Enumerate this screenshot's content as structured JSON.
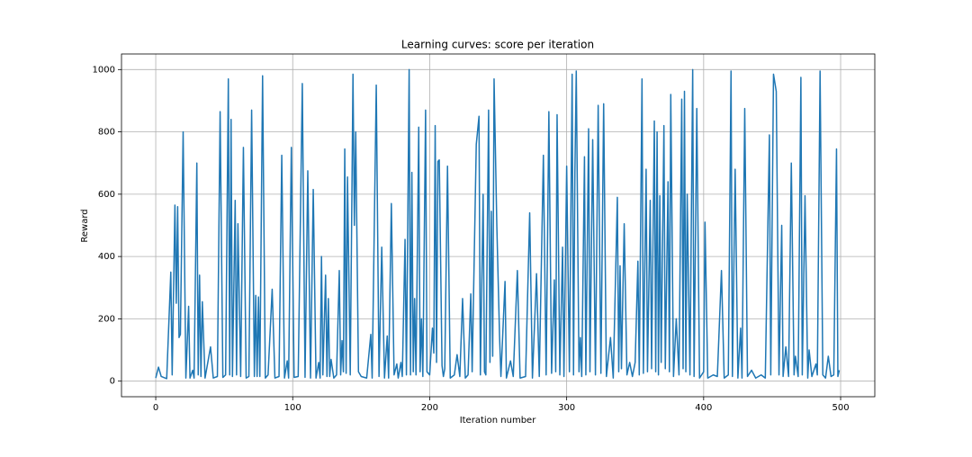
{
  "chart_data": {
    "type": "line",
    "title": "Learning curves: score per iteration",
    "x_label": "Iteration number",
    "y_label": "Reward",
    "xlim": [
      -25,
      524.95
    ],
    "ylim": [
      -50,
      1050
    ],
    "xticks": [
      0,
      100,
      200,
      300,
      400,
      500
    ],
    "yticks": [
      0,
      200,
      400,
      600,
      800,
      1000
    ],
    "grid": true,
    "series": [
      {
        "color": "#1f77b4",
        "x": [
          0,
          2,
          4,
          8,
          11,
          12,
          14,
          15,
          16,
          17,
          18,
          20,
          22,
          24,
          25,
          27,
          28,
          30,
          31,
          32,
          33,
          34,
          36,
          40,
          42,
          45,
          47,
          49,
          51,
          53,
          54,
          55,
          56,
          58,
          59,
          60,
          62,
          64,
          66,
          68,
          70,
          72,
          73,
          74,
          75,
          76,
          78,
          80,
          82,
          85,
          87,
          90,
          92,
          94,
          96,
          97,
          99,
          101,
          104,
          107,
          109,
          111,
          113,
          115,
          117,
          119,
          120,
          121,
          122,
          124,
          125,
          126,
          127,
          128,
          130,
          132,
          134,
          135,
          136,
          137,
          138,
          139,
          140,
          142,
          144,
          145,
          146,
          148,
          150,
          154,
          157,
          158,
          161,
          163,
          165,
          167,
          169,
          170,
          172,
          174,
          176,
          177,
          179,
          180,
          182,
          183,
          185,
          186,
          187,
          188,
          189,
          190,
          192,
          193,
          194,
          195,
          197,
          198,
          200,
          202,
          203,
          204,
          205,
          206,
          207,
          209,
          210,
          211,
          213,
          215,
          218,
          220,
          222,
          224,
          226,
          228,
          230,
          231,
          234,
          236,
          237,
          239,
          240,
          241,
          243,
          244,
          245,
          246,
          247,
          249,
          251,
          252,
          255,
          256,
          259,
          261,
          264,
          266,
          270,
          273,
          275,
          278,
          280,
          283,
          285,
          287,
          289,
          291,
          292,
          293,
          295,
          297,
          298,
          300,
          302,
          304,
          305,
          306,
          307,
          309,
          310,
          311,
          313,
          314,
          316,
          317,
          319,
          321,
          323,
          325,
          327,
          329,
          332,
          334,
          337,
          338,
          339,
          340,
          342,
          344,
          346,
          348,
          350,
          352,
          353,
          355,
          356,
          358,
          359,
          361,
          362,
          364,
          365,
          366,
          367,
          368,
          369,
          371,
          372,
          374,
          375,
          376,
          378,
          380,
          382,
          384,
          385,
          386,
          387,
          388,
          390,
          392,
          393,
          395,
          397,
          400,
          401,
          403,
          407,
          410,
          413,
          415,
          418,
          420,
          421,
          423,
          425,
          427,
          428,
          430,
          432,
          435,
          438,
          442,
          445,
          448,
          449,
          451,
          453,
          455,
          457,
          458,
          460,
          462,
          464,
          466,
          467,
          469,
          471,
          472,
          474,
          476,
          477,
          479,
          482,
          483,
          485,
          487,
          489,
          491,
          493,
          495,
          497,
          498,
          499
        ],
        "values": [
          10,
          45,
          15,
          8,
          350,
          20,
          565,
          250,
          560,
          140,
          150,
          800,
          10,
          240,
          10,
          35,
          10,
          700,
          20,
          340,
          15,
          255,
          10,
          110,
          10,
          15,
          865,
          12,
          20,
          970,
          20,
          840,
          15,
          580,
          20,
          505,
          15,
          750,
          10,
          15,
          870,
          15,
          275,
          15,
          270,
          15,
          980,
          10,
          20,
          295,
          10,
          15,
          725,
          10,
          65,
          10,
          750,
          12,
          15,
          955,
          12,
          675,
          10,
          615,
          10,
          60,
          10,
          400,
          20,
          340,
          15,
          265,
          15,
          70,
          10,
          20,
          355,
          20,
          130,
          30,
          745,
          25,
          655,
          20,
          985,
          500,
          800,
          30,
          15,
          10,
          150,
          10,
          950,
          15,
          430,
          10,
          145,
          10,
          570,
          20,
          55,
          10,
          60,
          15,
          455,
          20,
          1000,
          20,
          670,
          30,
          265,
          20,
          815,
          30,
          200,
          15,
          870,
          30,
          20,
          170,
          90,
          820,
          60,
          705,
          710,
          50,
          15,
          40,
          690,
          10,
          20,
          85,
          15,
          265,
          10,
          20,
          280,
          30,
          760,
          850,
          20,
          600,
          30,
          20,
          870,
          60,
          545,
          80,
          970,
          500,
          145,
          15,
          320,
          10,
          65,
          15,
          355,
          10,
          15,
          540,
          10,
          345,
          15,
          725,
          20,
          865,
          25,
          325,
          30,
          855,
          20,
          430,
          15,
          690,
          30,
          985,
          20,
          670,
          995,
          30,
          140,
          15,
          720,
          20,
          810,
          30,
          775,
          20,
          885,
          25,
          890,
          15,
          140,
          10,
          590,
          30,
          370,
          40,
          505,
          20,
          60,
          15,
          60,
          385,
          20,
          970,
          25,
          680,
          30,
          580,
          40,
          835,
          30,
          800,
          20,
          595,
          60,
          820,
          40,
          640,
          30,
          920,
          15,
          200,
          20,
          905,
          40,
          930,
          30,
          600,
          20,
          1000,
          15,
          875,
          10,
          30,
          510,
          10,
          20,
          15,
          355,
          10,
          20,
          995,
          15,
          680,
          10,
          170,
          10,
          875,
          15,
          35,
          10,
          20,
          10,
          790,
          20,
          985,
          930,
          20,
          500,
          15,
          110,
          15,
          700,
          20,
          80,
          15,
          975,
          20,
          595,
          10,
          100,
          15,
          55,
          20,
          995,
          20,
          10,
          80,
          15,
          20,
          745,
          15,
          35
        ]
      }
    ]
  }
}
